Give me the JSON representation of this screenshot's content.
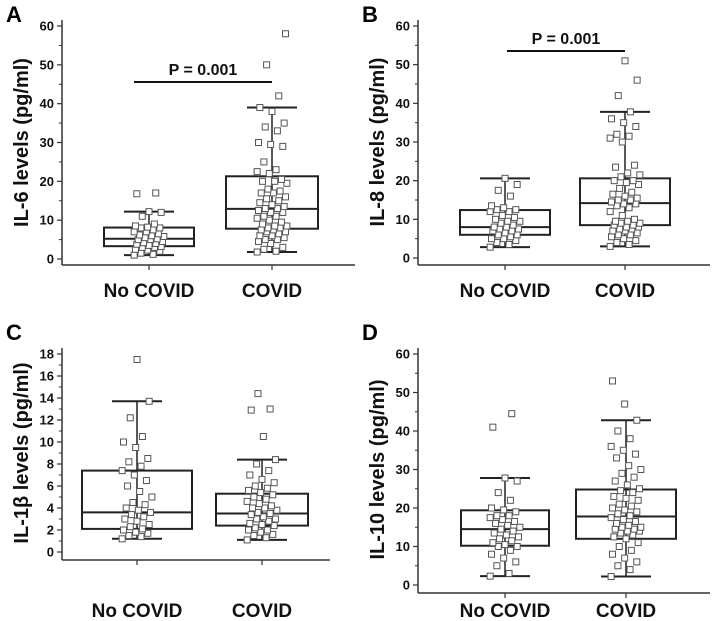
{
  "chart_data": [
    {
      "panel": "A",
      "type": "box",
      "ylabel": "IL-6 levels (pg/ml)",
      "ylim": [
        0,
        60
      ],
      "yticks": [
        0,
        10,
        20,
        30,
        40,
        50,
        60
      ],
      "categories": [
        "No COVID",
        "COVID"
      ],
      "annotation": "P = 0.001",
      "boxes": [
        {
          "min": 1,
          "q1": 3.3,
          "median": 5.2,
          "q3": 8.1,
          "max": 12.2,
          "points": [
            1,
            1.2,
            1.5,
            2,
            2.3,
            2.5,
            3,
            3,
            3.2,
            3.5,
            3.8,
            4,
            4.2,
            4.5,
            5,
            5,
            5.2,
            5.5,
            5.8,
            6,
            6.2,
            6.5,
            7,
            7,
            7.5,
            8,
            8,
            8.2,
            8.5,
            9,
            11,
            12,
            12.2,
            16.8,
            17
          ]
        },
        {
          "min": 1.8,
          "q1": 7.8,
          "median": 12.9,
          "q3": 21.3,
          "max": 39,
          "points": [
            1.8,
            2,
            2.5,
            3,
            4,
            4.5,
            5,
            5,
            5.5,
            6,
            6,
            6.5,
            7,
            7,
            7.5,
            7.5,
            8,
            8,
            8.5,
            8.5,
            9,
            9.5,
            10,
            10.5,
            11,
            11,
            12,
            12,
            12.5,
            13,
            13,
            13.5,
            14,
            14.5,
            15,
            15.5,
            16,
            17,
            17,
            17.5,
            18,
            19.5,
            20,
            20,
            20.5,
            22,
            22.5,
            23,
            25,
            29,
            29.5,
            30,
            33,
            34,
            35,
            38,
            39,
            42,
            50,
            58
          ]
        }
      ]
    },
    {
      "panel": "B",
      "type": "box",
      "ylabel": "IL-8 levels (pg/ml)",
      "ylim": [
        0,
        60
      ],
      "yticks": [
        0,
        10,
        20,
        30,
        40,
        50,
        60
      ],
      "categories": [
        "No COVID",
        "COVID"
      ],
      "annotation": "P = 0.001",
      "boxes": [
        {
          "min": 2.8,
          "q1": 6,
          "median": 8,
          "q3": 12.4,
          "max": 20.6,
          "points": [
            2.8,
            3.5,
            4,
            4.5,
            5,
            5,
            5.5,
            6,
            6,
            6.5,
            7,
            7,
            7.5,
            7.5,
            8,
            8,
            8.5,
            9,
            9.5,
            9.5,
            10,
            10.5,
            11,
            12,
            12,
            12.5,
            12.5,
            13,
            13.5,
            16,
            17.5,
            19,
            20.6
          ]
        },
        {
          "min": 3,
          "q1": 8.5,
          "median": 14.2,
          "q3": 20.6,
          "max": 37.8,
          "points": [
            3,
            3.5,
            4,
            4.5,
            5,
            5.5,
            6,
            6,
            6.5,
            7,
            7,
            7.5,
            7.5,
            8,
            8,
            8.5,
            8.5,
            9,
            9,
            9.5,
            9.5,
            10,
            11,
            12,
            13,
            13.5,
            14,
            14,
            14.5,
            15,
            15,
            15.5,
            16,
            16.5,
            17,
            18,
            19,
            19.5,
            20,
            20,
            21,
            21.5,
            22,
            23.5,
            24,
            30,
            31,
            31.5,
            32,
            34,
            35,
            36,
            37.8,
            42,
            46,
            51
          ]
        }
      ]
    },
    {
      "panel": "C",
      "type": "box",
      "ylabel": "IL-1β levels (pg/ml)",
      "ylim": [
        0,
        18
      ],
      "yticks": [
        0,
        2,
        4,
        6,
        8,
        10,
        12,
        14,
        16,
        18
      ],
      "categories": [
        "No COVID",
        "COVID"
      ],
      "boxes": [
        {
          "min": 1.2,
          "q1": 2.1,
          "median": 3.6,
          "q3": 7.4,
          "max": 13.7,
          "points": [
            1.2,
            1.4,
            1.5,
            1.7,
            1.8,
            2,
            2.1,
            2.3,
            2.5,
            2.8,
            3,
            3.2,
            3.4,
            3.6,
            3.8,
            4,
            4.3,
            4.5,
            5,
            5.5,
            6,
            6.5,
            7,
            7.4,
            7.8,
            8.2,
            8.5,
            9.5,
            10,
            10.5,
            12.2,
            13.7,
            17.5
          ]
        },
        {
          "min": 1.1,
          "q1": 2.4,
          "median": 3.5,
          "q3": 5.3,
          "max": 8.4,
          "points": [
            1.1,
            1.3,
            1.5,
            1.6,
            1.8,
            2,
            2,
            2.2,
            2.4,
            2.5,
            2.6,
            2.8,
            3,
            3,
            3.2,
            3.4,
            3.5,
            3.6,
            3.8,
            4,
            4,
            4.2,
            4.4,
            4.6,
            4.8,
            5,
            5.2,
            5.4,
            5.6,
            5.8,
            6,
            6.3,
            6.6,
            7,
            7.4,
            8,
            8.4,
            10.5,
            12.9,
            13,
            14.4
          ]
        }
      ]
    },
    {
      "panel": "D",
      "type": "box",
      "ylabel": "IL-10 levels (pg/ml)",
      "ylim": [
        0,
        60
      ],
      "yticks": [
        0,
        10,
        20,
        30,
        40,
        50,
        60
      ],
      "categories": [
        "No COVID",
        "COVID"
      ],
      "boxes": [
        {
          "min": 2.3,
          "q1": 10.2,
          "median": 14.5,
          "q3": 19.4,
          "max": 27.8,
          "points": [
            2.3,
            3,
            5,
            6,
            7,
            8,
            9,
            10,
            10,
            10.5,
            11,
            11.5,
            12,
            12.5,
            13,
            13.5,
            14,
            14.5,
            15,
            15.5,
            16,
            16.5,
            17,
            17.5,
            18,
            18,
            19,
            19.5,
            20,
            22,
            24,
            27,
            27.8,
            41,
            44.5
          ]
        },
        {
          "min": 2.2,
          "q1": 12,
          "median": 17.8,
          "q3": 24.8,
          "max": 42.8,
          "points": [
            2.2,
            4,
            5,
            6,
            7,
            8,
            9,
            10,
            11,
            12,
            12.5,
            13,
            13.5,
            14,
            14,
            14.5,
            14.5,
            15,
            15,
            15.5,
            16,
            16.5,
            17,
            17.5,
            18,
            18.5,
            19,
            19.5,
            20,
            20.5,
            21,
            22,
            22.5,
            23,
            24,
            24.5,
            25,
            26,
            27,
            28,
            29,
            30,
            31,
            33,
            34,
            35,
            36,
            38,
            40,
            42.8,
            47,
            53
          ]
        }
      ]
    }
  ]
}
